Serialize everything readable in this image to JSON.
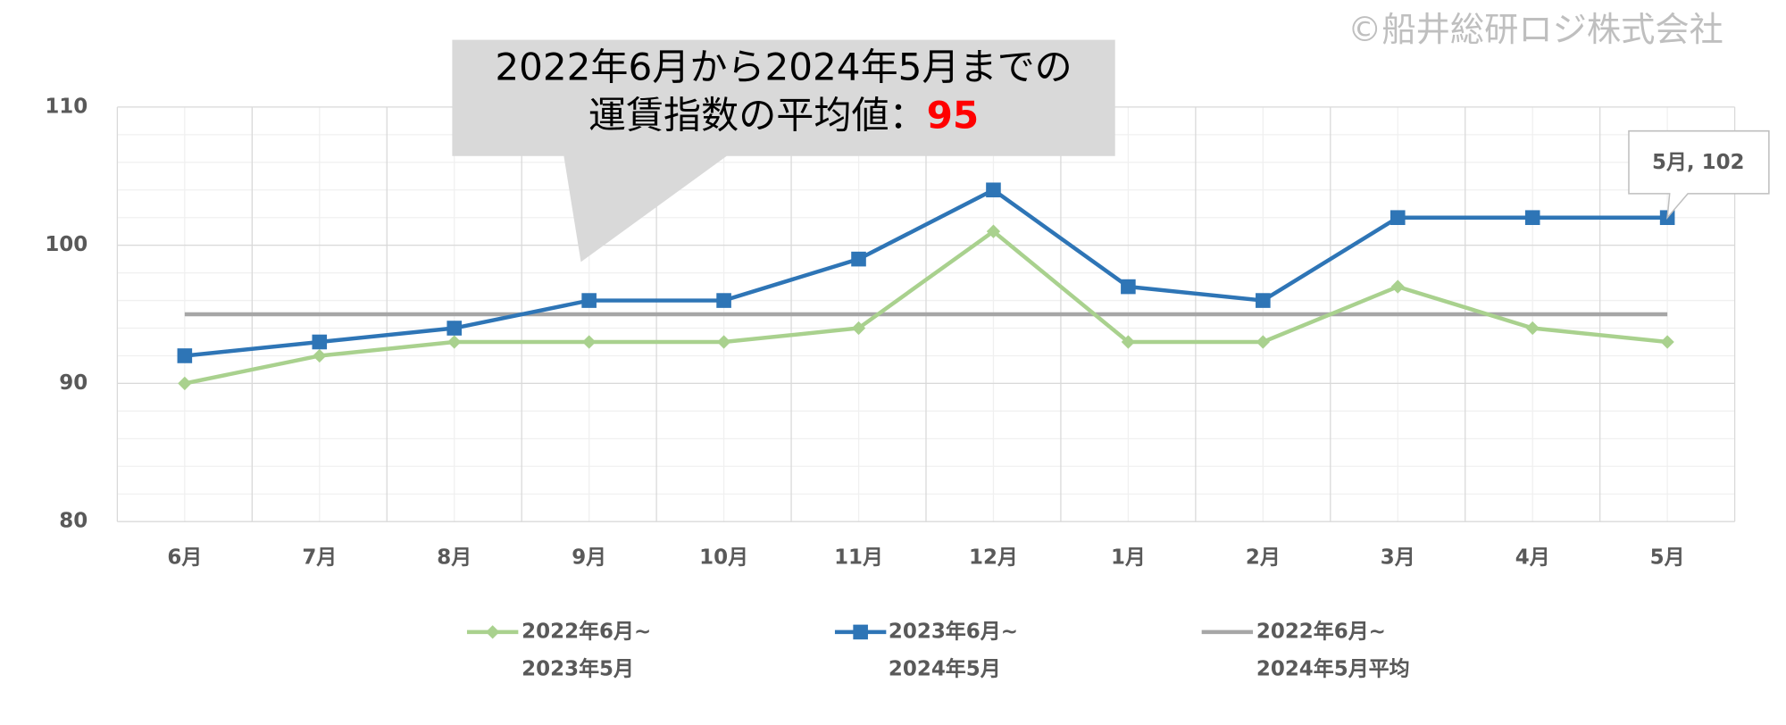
{
  "chart_data": {
    "type": "line",
    "copyright": "©船井総研ロジ株式会社",
    "annotation": {
      "line1": "2022年6月から2024年5月までの",
      "line2": "運賃指数の平均値：",
      "value": 95
    },
    "data_label": "5月, 102",
    "categories": [
      "6月",
      "7月",
      "8月",
      "9月",
      "10月",
      "11月",
      "12月",
      "1月",
      "2月",
      "3月",
      "4月",
      "5月"
    ],
    "series": [
      {
        "name": "2022年6月~ 2023年5月",
        "color": "#a9d18e",
        "marker": "diamond",
        "values": [
          90,
          92,
          93,
          93,
          93,
          94,
          101,
          93,
          93,
          97,
          94,
          93
        ]
      },
      {
        "name": "2023年6月~ 2024年5月",
        "color": "#2e75b6",
        "marker": "square",
        "values": [
          92,
          93,
          94,
          96,
          96,
          99,
          104,
          97,
          96,
          102,
          102,
          102
        ]
      },
      {
        "name": "2022年6月~ 2024年5月平均",
        "color": "#a6a6a6",
        "marker": "none",
        "values": [
          95,
          95,
          95,
          95,
          95,
          95,
          95,
          95,
          95,
          95,
          95,
          95
        ]
      }
    ],
    "ylim": [
      80,
      110
    ],
    "yticks": [
      80,
      90,
      100,
      110
    ],
    "grid": true
  }
}
